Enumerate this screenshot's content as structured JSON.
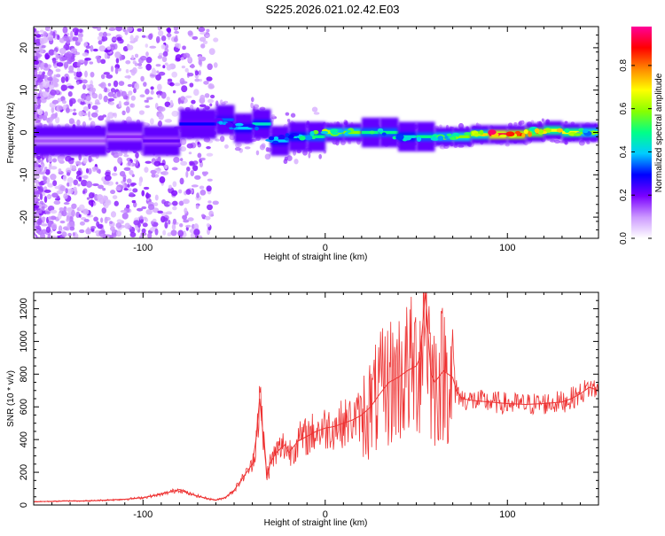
{
  "figure_title": "S225.2026.021.02.42.E03",
  "chart_data": [
    {
      "type": "heatmap",
      "title": "S225.2026.021.02.42.E03",
      "xlabel": "Height of straight line (km)",
      "ylabel": "Frequency (Hz)",
      "xlim": [
        -160,
        150
      ],
      "ylim": [
        -25,
        25
      ],
      "x_ticks": [
        -100,
        0,
        100
      ],
      "x_tick_labels": [
        "-100",
        "0",
        "100"
      ],
      "y_ticks": [
        -20,
        -10,
        0,
        10,
        20
      ],
      "y_tick_labels": [
        "-20",
        "-10",
        "0",
        "10",
        "20"
      ],
      "ridge": {
        "x": [
          -160,
          -120,
          -100,
          -80,
          -60,
          -50,
          -40,
          -30,
          -20,
          -10,
          0,
          10,
          20,
          30,
          40,
          50,
          60,
          70,
          80,
          90,
          100,
          110,
          120,
          130,
          140,
          150
        ],
        "frequency": [
          -2,
          -1,
          -2,
          2,
          3,
          1,
          2,
          -2,
          -1,
          -1,
          0,
          0,
          0,
          0,
          -1,
          -1,
          -1,
          -1,
          -0.5,
          -0.5,
          -0.5,
          0,
          0.5,
          0,
          0,
          0
        ],
        "amplitude": [
          0.15,
          0.18,
          0.22,
          0.3,
          0.35,
          0.4,
          0.45,
          0.4,
          0.45,
          0.5,
          0.6,
          0.6,
          0.5,
          0.5,
          0.45,
          0.5,
          0.55,
          0.6,
          0.65,
          0.95,
          0.9,
          0.8,
          0.7,
          0.7,
          0.6,
          0.55
        ]
      },
      "colorbar": {
        "label": "Normalized spectral amplitude",
        "range": [
          0,
          0.98
        ],
        "ticks": [
          0.0,
          0.2,
          0.4,
          0.6,
          0.8
        ],
        "tick_labels": [
          "0.0",
          "0.2",
          "0.4",
          "0.6",
          "0.8"
        ],
        "colors": [
          "#ffffff",
          "#cc99ff",
          "#7a00ff",
          "#0000ff",
          "#00ccff",
          "#00ff88",
          "#88ff00",
          "#ffff00",
          "#ff8800",
          "#ff0000",
          "#ff0099"
        ]
      }
    },
    {
      "type": "line",
      "xlabel": "Height of straight line (km)",
      "ylabel": "SNR (10 * v/v)",
      "xlim": [
        -160,
        150
      ],
      "ylim": [
        0,
        1300
      ],
      "x_ticks": [
        -100,
        0,
        100
      ],
      "x_tick_labels": [
        "-100",
        "0",
        "100"
      ],
      "y_ticks": [
        0,
        200,
        400,
        600,
        800,
        1000,
        1200
      ],
      "y_tick_labels": [
        "0",
        "200",
        "400",
        "600",
        "800",
        "1000",
        "1200"
      ],
      "series": [
        {
          "name": "SNR",
          "color": "#ee3333",
          "x": [
            -160,
            -150,
            -140,
            -130,
            -120,
            -110,
            -100,
            -95,
            -90,
            -85,
            -80,
            -75,
            -70,
            -65,
            -60,
            -55,
            -50,
            -45,
            -40,
            -38,
            -36,
            -34,
            -32,
            -30,
            -28,
            -26,
            -24,
            -22,
            -20,
            -15,
            -10,
            -5,
            0,
            5,
            10,
            15,
            20,
            25,
            30,
            35,
            40,
            45,
            50,
            52,
            55,
            58,
            60,
            65,
            70,
            72,
            75,
            80,
            90,
            100,
            110,
            120,
            130,
            135,
            140,
            145,
            150
          ],
          "values": [
            20,
            22,
            25,
            25,
            30,
            35,
            45,
            55,
            65,
            80,
            95,
            70,
            55,
            40,
            30,
            45,
            90,
            170,
            250,
            400,
            650,
            420,
            180,
            260,
            300,
            330,
            350,
            370,
            320,
            390,
            420,
            450,
            470,
            480,
            500,
            520,
            550,
            600,
            680,
            750,
            780,
            820,
            850,
            900,
            1300,
            800,
            750,
            820,
            780,
            700,
            650,
            640,
            630,
            620,
            615,
            620,
            630,
            650,
            680,
            720,
            700
          ]
        }
      ]
    }
  ]
}
